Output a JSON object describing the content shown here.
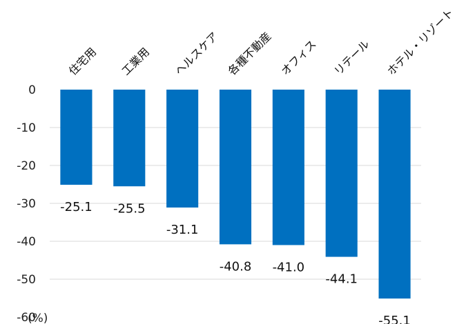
{
  "chart_data": {
    "type": "bar",
    "title": "",
    "xlabel": "",
    "ylabel": "",
    "unit_label": "(%)",
    "categories": [
      "住宅用",
      "工業用",
      "ヘルスケア",
      "各種不動産",
      "オフィス",
      "リテール",
      "ホテル・リゾート"
    ],
    "values": [
      -25.1,
      -25.5,
      -31.1,
      -40.8,
      -41.0,
      -44.1,
      -55.1
    ],
    "value_labels": [
      "-25.1",
      "-25.5",
      "-31.1",
      "-40.8",
      "-41.0",
      "-44.1",
      "-55.1"
    ],
    "ylim": [
      -60,
      0
    ],
    "yticks": [
      0,
      -10,
      -20,
      -30,
      -40,
      -50,
      -60
    ],
    "ytick_labels": [
      "0",
      "-10",
      "-20",
      "-30",
      "-40",
      "-50",
      "-60"
    ],
    "grid": true,
    "legend": "none",
    "bar_color": "#0070C0"
  }
}
